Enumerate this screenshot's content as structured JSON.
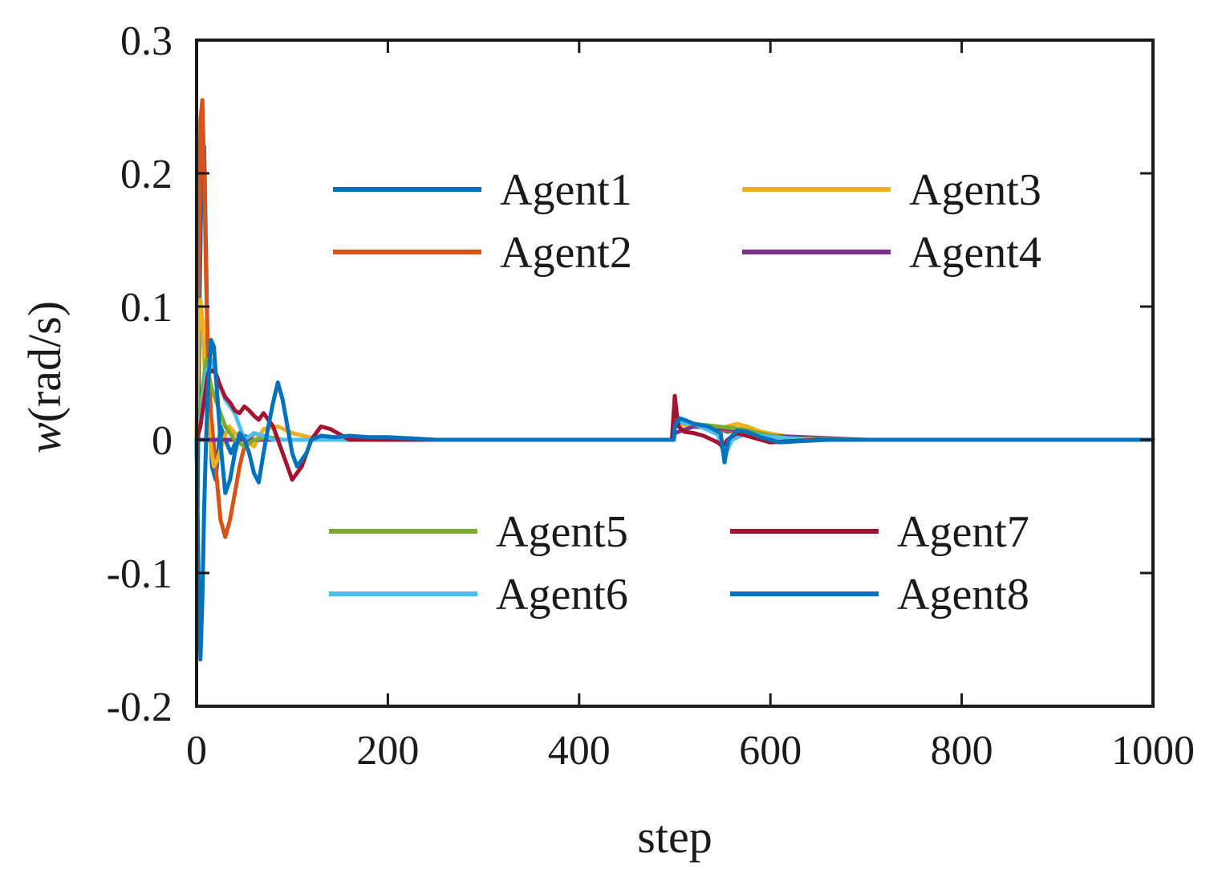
{
  "chart_data": {
    "type": "line",
    "title": "",
    "xlabel": "step",
    "ylabel_prefix": "w",
    "ylabel_unit": "(rad/s)",
    "xlim": [
      0,
      1000
    ],
    "ylim": [
      -0.2,
      0.3
    ],
    "xticks": [
      0,
      200,
      400,
      600,
      800,
      1000
    ],
    "xtick_labels": [
      "0",
      "200",
      "400",
      "600",
      "800",
      "1000"
    ],
    "yticks": [
      -0.2,
      -0.1,
      0,
      0.1,
      0.2,
      0.3
    ],
    "ytick_labels": [
      "-0.2",
      "-0.1",
      "0",
      "0.1",
      "0.2",
      "0.3"
    ],
    "grid": false,
    "legend": [
      {
        "placement": "upper-center",
        "entries": [
          "Agent1",
          "Agent2",
          "Agent3",
          "Agent4"
        ]
      },
      {
        "placement": "lower-center",
        "entries": [
          "Agent5",
          "Agent6",
          "Agent7",
          "Agent8"
        ]
      }
    ],
    "series": [
      {
        "name": "Agent1",
        "color": "#0072BD",
        "x": [
          0,
          1,
          3,
          5,
          8,
          12,
          16,
          20,
          25,
          30,
          36,
          42,
          50,
          60,
          70,
          85,
          100,
          130,
          160,
          200,
          300,
          499,
          500,
          503,
          510,
          520,
          540,
          555,
          570,
          590,
          620,
          700,
          1000
        ],
        "y": [
          0,
          -0.05,
          0.1,
          0.19,
          0.22,
          0.05,
          -0.02,
          -0.03,
          0.01,
          0.0,
          -0.01,
          0.0,
          0.003,
          0.0,
          0.0,
          0.0,
          0.0,
          0.0,
          0.0,
          0.0,
          0.0,
          0.0,
          0.012,
          0.015,
          0.014,
          0.012,
          0.01,
          0.006,
          0.008,
          0.004,
          0.001,
          0.0,
          0.0
        ]
      },
      {
        "name": "Agent2",
        "color": "#D95319",
        "x": [
          0,
          2,
          4,
          6,
          8,
          10,
          12,
          15,
          20,
          25,
          30,
          35,
          40,
          45,
          50,
          60,
          70,
          80,
          100,
          120,
          150,
          200,
          300,
          499,
          500,
          505,
          520,
          545,
          565,
          590,
          620,
          700,
          1000
        ],
        "y": [
          0,
          0.1,
          0.24,
          0.255,
          0.2,
          0.12,
          0.06,
          0.02,
          -0.02,
          -0.06,
          -0.073,
          -0.06,
          -0.04,
          -0.02,
          -0.005,
          0.005,
          0.002,
          0.0,
          0.0,
          0.0,
          0.0,
          0.0,
          0.0,
          0.0,
          0.01,
          0.012,
          0.01,
          0.008,
          0.006,
          0.003,
          0.001,
          0.0,
          0.0
        ]
      },
      {
        "name": "Agent3",
        "color": "#EDB120",
        "x": [
          0,
          2,
          4,
          6,
          8,
          10,
          14,
          18,
          22,
          28,
          34,
          40,
          50,
          60,
          70,
          85,
          100,
          130,
          160,
          200,
          300,
          499,
          500,
          505,
          520,
          545,
          565,
          575,
          590,
          620,
          700,
          1000
        ],
        "y": [
          0,
          0.08,
          0.105,
          0.09,
          0.06,
          0.03,
          0.0,
          -0.02,
          -0.015,
          0.0,
          0.01,
          0.005,
          0.0,
          -0.005,
          0.008,
          0.01,
          0.005,
          0.0,
          0.0,
          0.0,
          0.0,
          0.0,
          0.01,
          0.012,
          0.01,
          0.008,
          0.012,
          0.01,
          0.006,
          0.002,
          0.0,
          0.0
        ]
      },
      {
        "name": "Agent4",
        "color": "#7E2F8E",
        "x": [
          0,
          100,
          200,
          400,
          499,
          500,
          520,
          560,
          600,
          700,
          1000
        ],
        "y": [
          0,
          0,
          0,
          0,
          0,
          0.005,
          0.01,
          0.008,
          0.003,
          0.0,
          0.0
        ]
      },
      {
        "name": "Agent5",
        "color": "#77AC30",
        "x": [
          0,
          5,
          10,
          15,
          20,
          25,
          30,
          40,
          50,
          60,
          75,
          90,
          110,
          140,
          200,
          300,
          499,
          500,
          505,
          520,
          545,
          570,
          595,
          620,
          700,
          1000
        ],
        "y": [
          0,
          0.03,
          0.06,
          0.04,
          0.03,
          0.02,
          0.01,
          0.0,
          -0.005,
          0.0,
          0.002,
          0.0,
          0.0,
          0.0,
          0.0,
          0.0,
          0.0,
          0.012,
          0.015,
          0.012,
          0.01,
          0.008,
          0.004,
          0.001,
          0.0,
          0.0
        ]
      },
      {
        "name": "Agent6",
        "color": "#4DBEEE",
        "x": [
          0,
          5,
          10,
          15,
          20,
          25,
          30,
          40,
          50,
          60,
          70,
          80,
          100,
          120,
          150,
          200,
          300,
          499,
          500,
          505,
          520,
          545,
          552,
          560,
          575,
          600,
          650,
          1000
        ],
        "y": [
          0,
          0.02,
          0.05,
          0.06,
          0.05,
          0.04,
          0.03,
          0.02,
          0.0,
          0.005,
          0.003,
          0.0,
          0.0,
          0.0,
          0.0,
          0.0,
          0.0,
          0.0,
          0.01,
          0.013,
          0.012,
          0.004,
          -0.012,
          0.0,
          0.005,
          0.002,
          0.0,
          0.0
        ]
      },
      {
        "name": "Agent7",
        "color": "#A2142F",
        "x": [
          0,
          4,
          8,
          12,
          16,
          20,
          25,
          30,
          35,
          40,
          45,
          50,
          55,
          60,
          65,
          70,
          80,
          90,
          100,
          110,
          120,
          130,
          140,
          160,
          200,
          300,
          497,
          500,
          502,
          504,
          510,
          520,
          530,
          545,
          550,
          555,
          565,
          580,
          600,
          620,
          650,
          700,
          1000
        ],
        "y": [
          0,
          0.01,
          0.03,
          0.05,
          0.052,
          0.05,
          0.04,
          0.032,
          0.028,
          0.022,
          0.02,
          0.025,
          0.022,
          0.018,
          0.015,
          0.02,
          0.01,
          -0.01,
          -0.03,
          -0.02,
          0.0,
          0.01,
          0.008,
          0.0,
          0.0,
          0.0,
          0.0,
          0.033,
          0.02,
          0.01,
          0.006,
          0.005,
          0.003,
          -0.002,
          -0.005,
          0.0,
          0.005,
          0.002,
          -0.002,
          -0.001,
          0.0,
          0.0,
          0.0
        ]
      },
      {
        "name": "Agent8",
        "color": "#0072BD",
        "x": [
          0,
          2,
          4,
          6,
          8,
          10,
          12,
          15,
          18,
          22,
          26,
          30,
          35,
          40,
          45,
          50,
          55,
          60,
          65,
          70,
          75,
          80,
          85,
          90,
          95,
          100,
          105,
          110,
          115,
          120,
          130,
          145,
          160,
          180,
          200,
          250,
          300,
          400,
          499,
          500,
          505,
          510,
          520,
          535,
          548,
          552,
          556,
          565,
          575,
          590,
          610,
          630,
          660,
          700,
          1000
        ],
        "y": [
          0,
          -0.1,
          -0.165,
          -0.12,
          -0.05,
          0.0,
          0.04,
          0.075,
          0.07,
          0.03,
          -0.01,
          -0.04,
          -0.03,
          -0.01,
          0.005,
          0.0,
          -0.01,
          -0.025,
          -0.032,
          -0.01,
          0.01,
          0.028,
          0.043,
          0.03,
          0.01,
          -0.01,
          -0.02,
          -0.015,
          -0.01,
          0.0,
          0.003,
          0.002,
          0.003,
          0.002,
          0.002,
          0.0,
          0.0,
          0.0,
          0.0,
          0.01,
          0.016,
          0.015,
          0.012,
          0.01,
          0.005,
          -0.017,
          0.0,
          0.007,
          0.006,
          0.002,
          -0.002,
          -0.001,
          0.0,
          0.0,
          0.0
        ]
      }
    ]
  }
}
